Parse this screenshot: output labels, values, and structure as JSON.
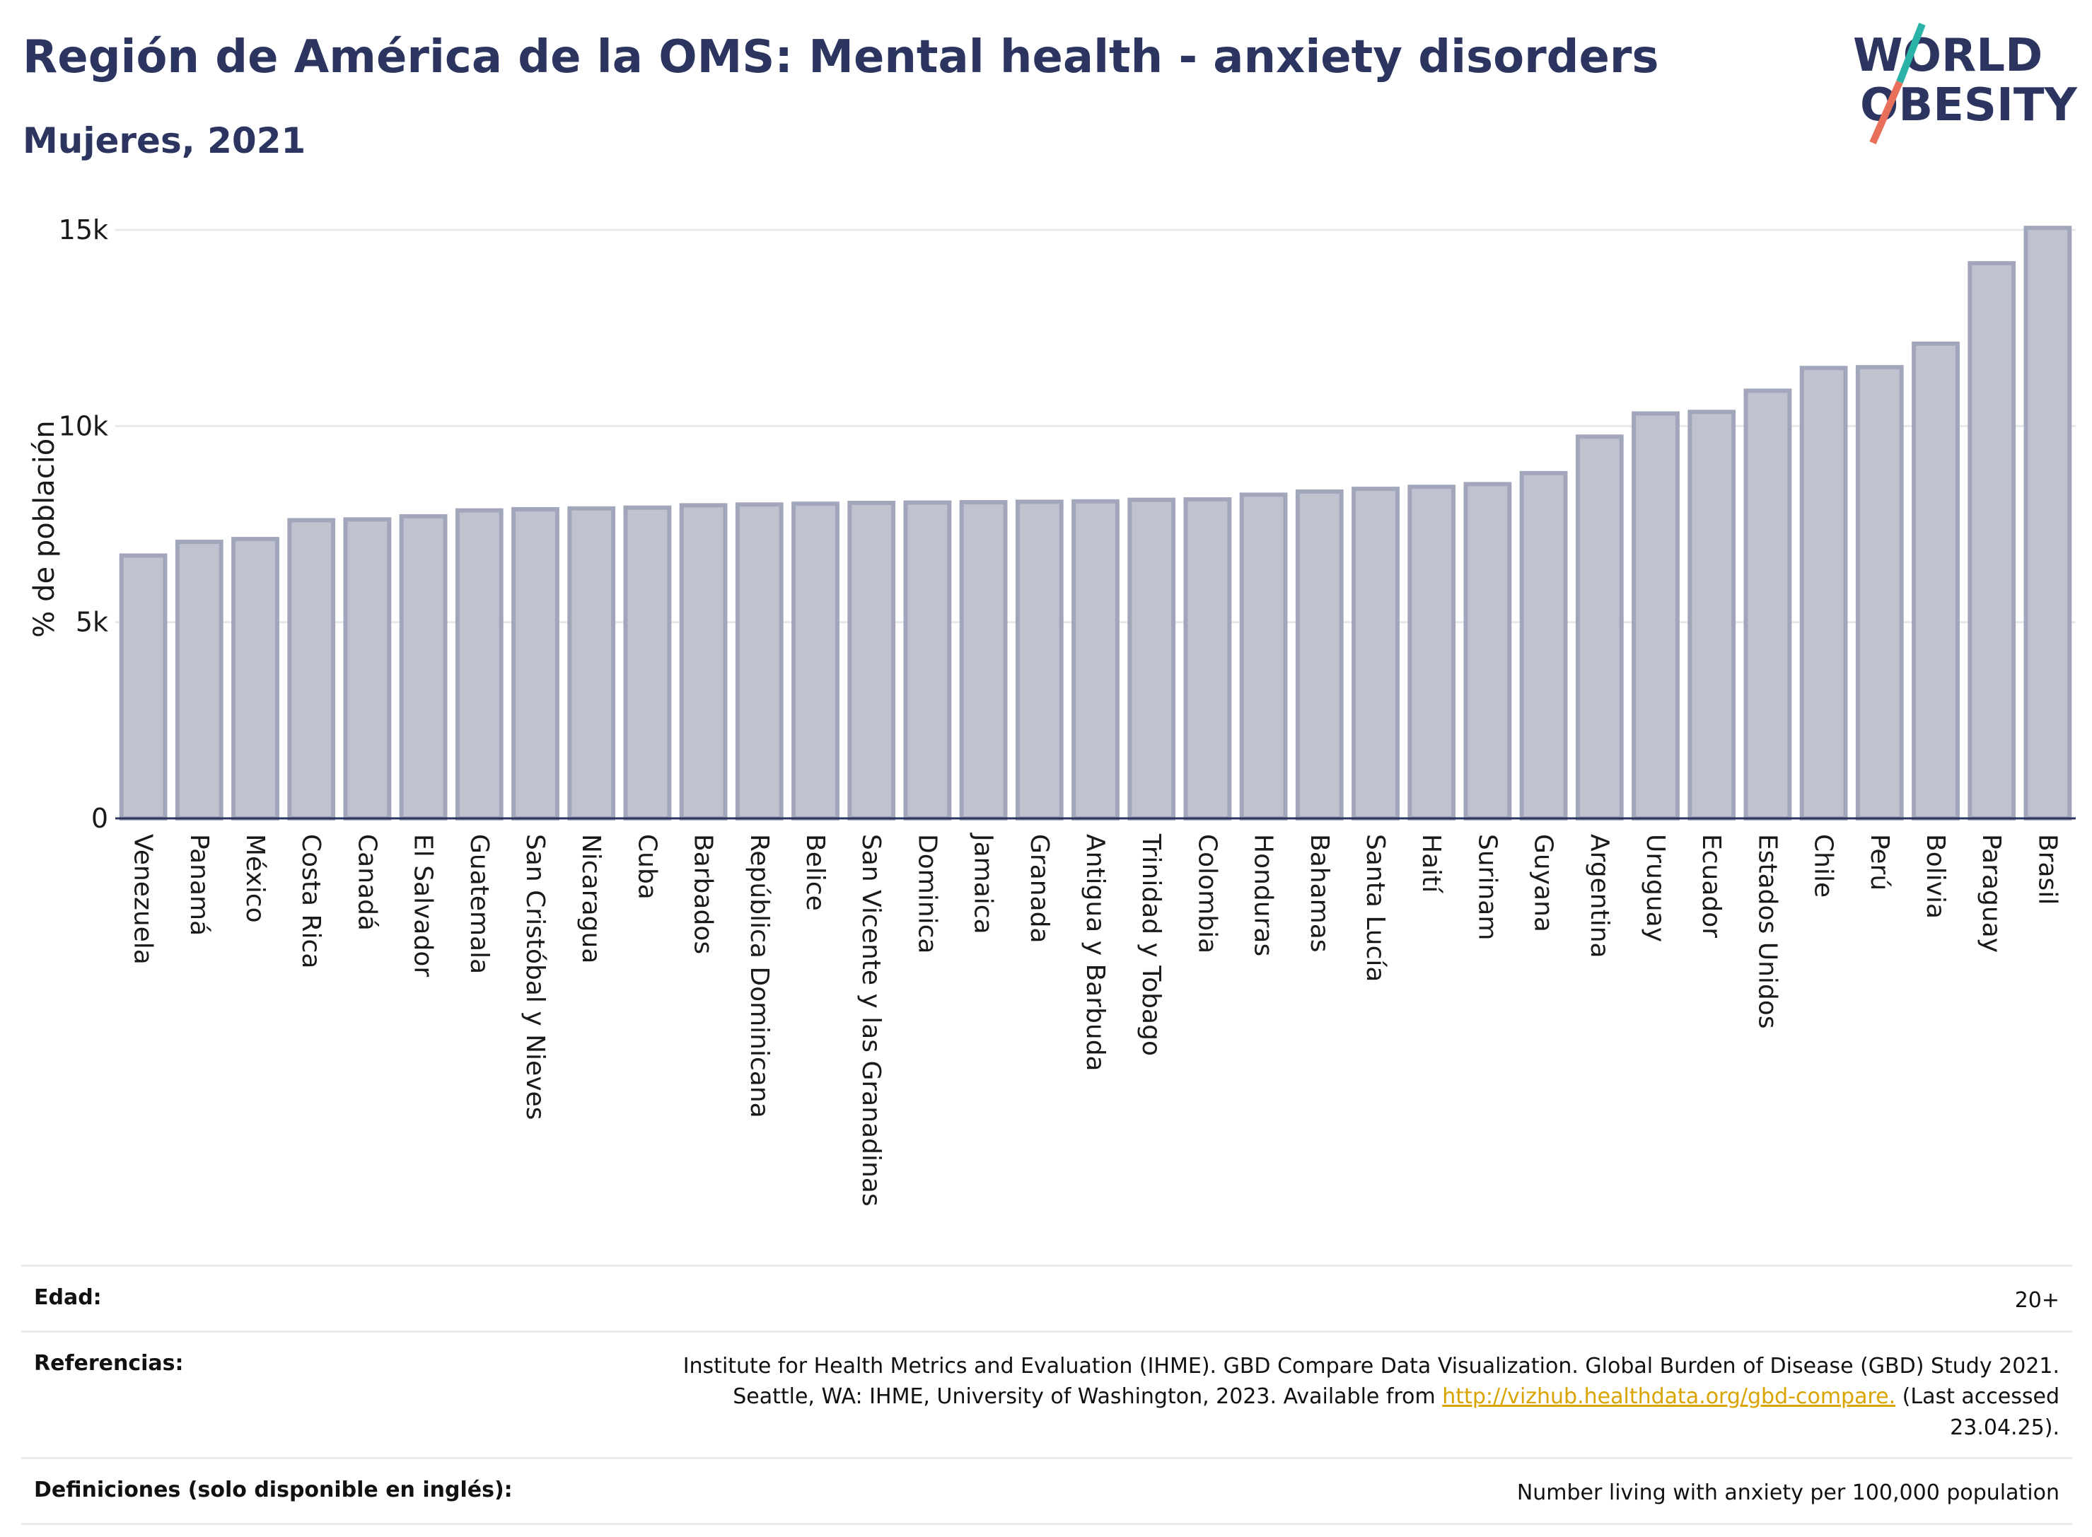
{
  "header": {
    "title": "Región de América de la OMS: Mental health - anxiety disorders",
    "subtitle": "Mujeres, 2021"
  },
  "logo": {
    "line1": "WORLD",
    "line2": "OBESITY",
    "colors": {
      "text": "#2b3560",
      "slash_top": "#2bb3a8",
      "slash_bottom": "#e8705a"
    }
  },
  "chart_data": {
    "type": "bar",
    "ylabel": "% de población",
    "ylim": [
      0,
      15000
    ],
    "yticks": [
      0,
      5000,
      10000,
      15000
    ],
    "ytick_labels": [
      "0",
      "5k",
      "10k",
      "15k"
    ],
    "grid": true,
    "bar_fill": "#c0c3cf",
    "bar_stroke": "#a2a6bb",
    "categories": [
      "Venezuela",
      "Panamá",
      "México",
      "Costa Rica",
      "Canadá",
      "El Salvador",
      "Guatemala",
      "San Cristóbal y Nieves",
      "Nicaragua",
      "Cuba",
      "Barbados",
      "República Dominicana",
      "Belice",
      "San Vicente y las Granadinas",
      "Dominica",
      "Jamaica",
      "Granada",
      "Antigua y Barbuda",
      "Trinidad y Tobago",
      "Colombia",
      "Honduras",
      "Bahamas",
      "Santa Lucía",
      "Haití",
      "Surinam",
      "Guyana",
      "Argentina",
      "Uruguay",
      "Ecuador",
      "Estados Unidos",
      "Chile",
      "Perú",
      "Bolivia",
      "Paraguay",
      "Brasil"
    ],
    "values": [
      6700,
      7050,
      7120,
      7600,
      7620,
      7700,
      7850,
      7880,
      7900,
      7920,
      7980,
      8000,
      8020,
      8040,
      8050,
      8060,
      8070,
      8080,
      8120,
      8130,
      8250,
      8330,
      8400,
      8450,
      8520,
      8800,
      9730,
      10320,
      10360,
      10900,
      11480,
      11500,
      12100,
      14150,
      15050
    ]
  },
  "footer": {
    "age_label": "Edad:",
    "age_value": "20+",
    "refs_label": "Referencias:",
    "refs_text_1": "Institute for Health Metrics and Evaluation (IHME). GBD Compare Data Visualization. Global Burden of Disease (GBD) Study 2021.",
    "refs_text_2": "Seattle, WA: IHME, University of Washington, 2023. Available from ",
    "refs_link": "http://vizhub.healthdata.org/gbd-compare.",
    "refs_text_3": " (Last accessed",
    "refs_text_4": "23.04.25).",
    "defs_label": "Definiciones (solo disponible en inglés):",
    "defs_value": "Number living with anxiety per 100,000 population"
  }
}
